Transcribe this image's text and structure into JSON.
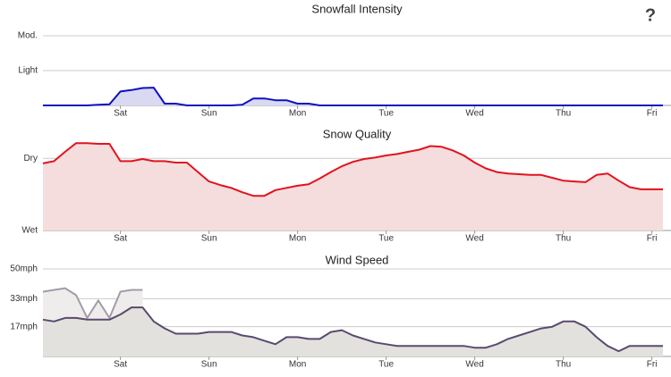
{
  "help_button": "?",
  "chart_data": [
    {
      "type": "area",
      "title": "Snowfall Intensity",
      "x": [
        0,
        3,
        6,
        9,
        12,
        15,
        18,
        21,
        24,
        27,
        30,
        33,
        36,
        39,
        42,
        45,
        48,
        51,
        54,
        57,
        60,
        63,
        66,
        69,
        72,
        75,
        78,
        81,
        84,
        87,
        90,
        93,
        96,
        99,
        102,
        105,
        108,
        111,
        114,
        117,
        120,
        123,
        126,
        129,
        132,
        135,
        138,
        141,
        144,
        147,
        150,
        153,
        156,
        159,
        162,
        165,
        168
      ],
      "xlim": [
        0,
        170
      ],
      "xticks": [
        {
          "value": 21,
          "label": "Sat"
        },
        {
          "value": 45,
          "label": "Sun"
        },
        {
          "value": 69,
          "label": "Mon"
        },
        {
          "value": 93,
          "label": "Tue"
        },
        {
          "value": 117,
          "label": "Wed"
        },
        {
          "value": 141,
          "label": "Thu"
        },
        {
          "value": 165,
          "label": "Fri"
        }
      ],
      "ylim": [
        0,
        2
      ],
      "yticks": [
        {
          "value": 1,
          "label": "Light"
        },
        {
          "value": 2,
          "label": "Mod."
        }
      ],
      "grid": true,
      "series": [
        {
          "color": "#1010c0",
          "fill": "#d9d9f2",
          "values": [
            0,
            0,
            0,
            0,
            0,
            0.02,
            0.03,
            0.4,
            0.44,
            0.5,
            0.51,
            0.05,
            0.05,
            0,
            0,
            0,
            0,
            0,
            0.02,
            0.2,
            0.2,
            0.15,
            0.15,
            0.05,
            0.05,
            0,
            0,
            0,
            0,
            0,
            0,
            0,
            0,
            0,
            0,
            0,
            0,
            0,
            0,
            0,
            0,
            0,
            0,
            0,
            0,
            0,
            0,
            0,
            0,
            0,
            0,
            0,
            0,
            0,
            0,
            0,
            0
          ]
        }
      ]
    },
    {
      "type": "area",
      "title": "Snow Quality",
      "x": [
        0,
        3,
        6,
        9,
        12,
        15,
        18,
        21,
        24,
        27,
        30,
        33,
        36,
        39,
        42,
        45,
        48,
        51,
        54,
        57,
        60,
        63,
        66,
        69,
        72,
        75,
        78,
        81,
        84,
        87,
        90,
        93,
        96,
        99,
        102,
        105,
        108,
        111,
        114,
        117,
        120,
        123,
        126,
        129,
        132,
        135,
        138,
        141,
        144,
        147,
        150,
        153,
        156,
        159,
        162,
        165,
        168
      ],
      "xlim": [
        0,
        170
      ],
      "xticks": [
        {
          "value": 21,
          "label": "Sat"
        },
        {
          "value": 45,
          "label": "Sun"
        },
        {
          "value": 69,
          "label": "Mon"
        },
        {
          "value": 93,
          "label": "Tue"
        },
        {
          "value": 117,
          "label": "Wed"
        },
        {
          "value": 141,
          "label": "Thu"
        },
        {
          "value": 165,
          "label": "Fri"
        }
      ],
      "ylim": [
        0,
        125
      ],
      "yticks": [
        {
          "value": 0,
          "label": "Wet"
        },
        {
          "value": 100,
          "label": "Dry"
        }
      ],
      "grid": true,
      "series": [
        {
          "color": "#e0141e",
          "fill": "#f5dcdd",
          "values": [
            93,
            96,
            109,
            121,
            121,
            120,
            120,
            96,
            96,
            99,
            96,
            96,
            94,
            94,
            81,
            68,
            63,
            59,
            53,
            48,
            48,
            56,
            59,
            62,
            64,
            72,
            81,
            89,
            95,
            99,
            101,
            104,
            106,
            109,
            112,
            117,
            116,
            111,
            104,
            94,
            86,
            81,
            79,
            78,
            77,
            77,
            73,
            69,
            68,
            67,
            77,
            79,
            69,
            60,
            57,
            57,
            57
          ]
        }
      ]
    },
    {
      "type": "area",
      "title": "Wind Speed",
      "x": [
        0,
        3,
        6,
        9,
        12,
        15,
        18,
        21,
        24,
        27,
        30,
        33,
        36,
        39,
        42,
        45,
        48,
        51,
        54,
        57,
        60,
        63,
        66,
        69,
        72,
        75,
        78,
        81,
        84,
        87,
        90,
        93,
        96,
        99,
        102,
        105,
        108,
        111,
        114,
        117,
        120,
        123,
        126,
        129,
        132,
        135,
        138,
        141,
        144,
        147,
        150,
        153,
        156,
        159,
        162,
        165,
        168
      ],
      "xlim": [
        0,
        170
      ],
      "xticks": [
        {
          "value": 21,
          "label": "Sat"
        },
        {
          "value": 45,
          "label": "Sun"
        },
        {
          "value": 69,
          "label": "Mon"
        },
        {
          "value": 93,
          "label": "Tue"
        },
        {
          "value": 117,
          "label": "Wed"
        },
        {
          "value": 141,
          "label": "Thu"
        },
        {
          "value": 165,
          "label": "Fri"
        }
      ],
      "ylim": [
        0,
        50
      ],
      "yticks": [
        {
          "value": 17,
          "label": "17mph"
        },
        {
          "value": 33,
          "label": "33mph"
        },
        {
          "value": 50,
          "label": "50mph"
        }
      ],
      "grid": true,
      "series": [
        {
          "color": "#a39ca8",
          "fill": "#efedeb",
          "values": [
            37,
            38,
            39,
            35,
            22,
            32,
            22,
            37,
            38,
            38,
            null,
            null,
            null,
            null,
            null,
            null,
            null,
            null,
            null,
            null,
            null,
            null,
            null,
            null,
            null,
            null,
            null,
            null,
            null,
            null,
            null,
            null,
            null,
            null,
            null,
            null,
            null,
            null,
            null,
            null,
            null,
            null,
            null,
            null,
            null,
            null,
            null,
            null,
            null,
            null,
            null,
            null,
            null,
            null,
            null,
            null,
            null
          ]
        },
        {
          "color": "#5a4a6e",
          "fill": "#e3e1dd",
          "values": [
            21,
            20,
            22,
            22,
            21,
            21,
            21,
            24,
            28,
            28,
            20,
            16,
            13,
            13,
            13,
            14,
            14,
            14,
            12,
            11,
            9,
            7,
            11,
            11,
            10,
            10,
            14,
            15,
            12,
            10,
            8,
            7,
            6,
            6,
            6,
            6,
            6,
            6,
            6,
            5,
            5,
            7,
            10,
            12,
            14,
            16,
            17,
            20,
            20,
            17,
            11,
            6,
            3,
            6,
            6,
            6,
            6
          ]
        }
      ]
    }
  ]
}
